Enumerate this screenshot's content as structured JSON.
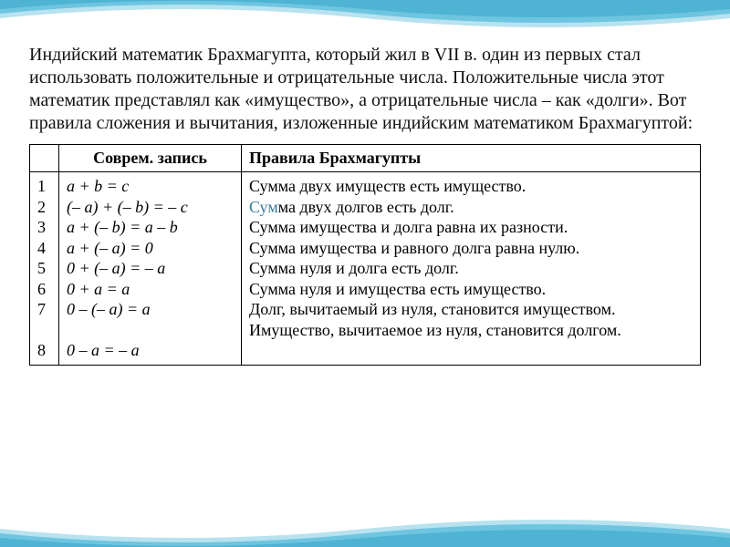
{
  "background": {
    "wave_colors": [
      "#6ec5e0",
      "#4fb3d4",
      "#b8e2ef"
    ],
    "page_bg": "#ffffff"
  },
  "paragraph": "Индийский математик Брахмагупта, который жил в VII в. один из первых стал использовать положительные и отрицательные числа. Положительные числа этот математик представлял как «имущество», а отрицательные числа – как «долги». Вот правила сложения и вычитания, изложенные индийским математиком Брахмагуптой:",
  "table": {
    "headers": {
      "num": "",
      "modern": "Соврем. запись",
      "rules": "Правила Брахмагупты"
    },
    "col_widths": {
      "num": 32,
      "modern": 200
    },
    "rows": [
      {
        "n": "1",
        "modern": "a + b = c",
        "rule": "Сумма двух имуществ есть имущество."
      },
      {
        "n": "2",
        "modern": "(– a) + (– b) = – c",
        "rule": "Сумма двух долгов есть долг.",
        "highlight_prefix": "Сум"
      },
      {
        "n": "3",
        "modern": "a + (– b) = a – b",
        "rule": "Сумма имущества и долга равна их разности."
      },
      {
        "n": "4",
        "modern": "a + (– a) = 0",
        "rule": "Сумма имущества и равного долга равна нулю."
      },
      {
        "n": "5",
        "modern": "0 + (– a) = – a",
        "rule": "Сумма нуля и долга есть долг."
      },
      {
        "n": "6",
        "modern": "0 + a = a",
        "rule": "Сумма нуля и имущества есть имущество."
      },
      {
        "n": "7",
        "modern": "0 – (– a) = a",
        "rule": "Долг, вычитаемый из нуля, становится имуществом."
      },
      {
        "n": "8",
        "modern": "0 – a = – a",
        "rule": "Имущество, вычитаемое из нуля, становится долгом.",
        "gap_before": true
      }
    ]
  },
  "fonts": {
    "paragraph_size": 20,
    "table_size": 18,
    "family": "Times New Roman"
  },
  "colors": {
    "text": "#111111",
    "border": "#000000",
    "highlight": "#3a7a9a"
  }
}
